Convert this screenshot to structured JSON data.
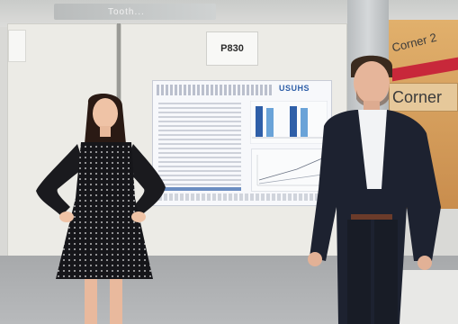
{
  "signage": {
    "ceiling_text": "Tooth..."
  },
  "board": {
    "number": "P830"
  },
  "poster": {
    "logo_text": "USUHS"
  },
  "corner_sign": {
    "top_text": "Corner 2",
    "box_text": "Corner"
  }
}
